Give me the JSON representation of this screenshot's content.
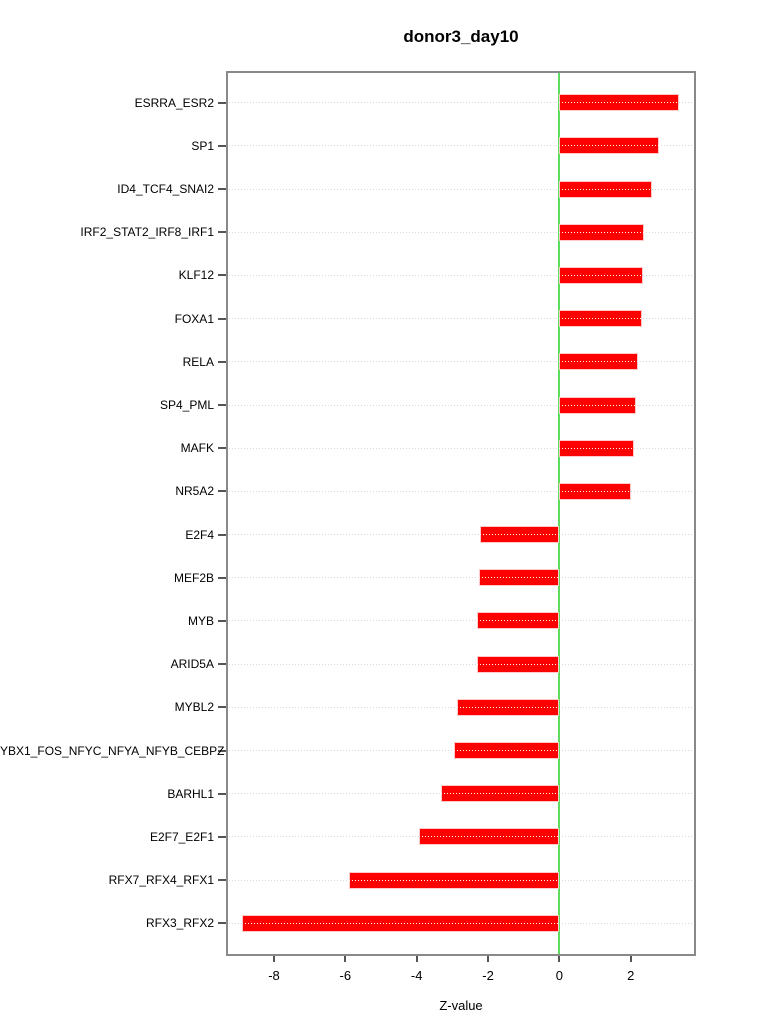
{
  "chart_data": {
    "type": "bar",
    "orientation": "horizontal",
    "title": "donor3_day10",
    "xlabel": "Z-value",
    "categories": [
      "ESRRA_ESR2",
      "SP1",
      "ID4_TCF4_SNAI2",
      "IRF2_STAT2_IRF8_IRF1",
      "KLF12",
      "FOXA1",
      "RELA",
      "SP4_PML",
      "MAFK",
      "NR5A2",
      "E2F4",
      "MEF2B",
      "MYB",
      "ARID5A",
      "MYBL2",
      "YBX1_FOS_NFYC_NFYA_NFYB_CEBPZ",
      "BARHL1",
      "E2F7_E2F1",
      "RFX7_RFX4_RFX1",
      "RFX3_RFX2"
    ],
    "values": [
      3.36,
      2.8,
      2.6,
      2.38,
      2.34,
      2.31,
      2.2,
      2.14,
      2.09,
      2.0,
      -2.22,
      -2.24,
      -2.3,
      -2.31,
      -2.87,
      -2.94,
      -3.32,
      -3.93,
      -5.9,
      -8.89
    ],
    "xticks": [
      -8,
      -6,
      -4,
      -2,
      0,
      2
    ],
    "xlim": [
      -9.345,
      3.83
    ],
    "grid": "dotted horizontal line per category",
    "legend": "none",
    "colors": {
      "bar": "#ff0000",
      "bar_edge": "#ffc9c9",
      "zero_line": "#5ddc5d",
      "gridline": "#d9d9d9",
      "box_border": "#898989",
      "tick": "#555555",
      "text": "#000000",
      "background": "#ffffff"
    }
  }
}
